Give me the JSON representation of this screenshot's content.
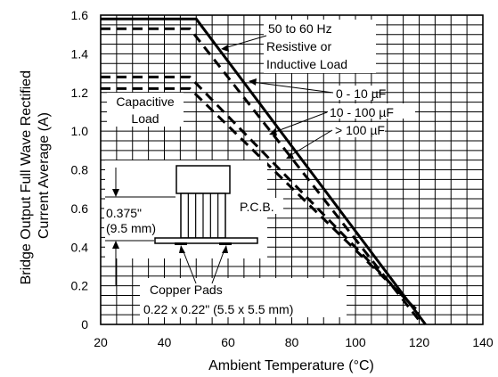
{
  "chart_data": {
    "type": "line",
    "title": "",
    "xlabel": "Ambient Temperature (°C)",
    "ylabel_lines": [
      "Bridge Output Full Wave Rectified",
      "Current Average (A)"
    ],
    "xlim": [
      20,
      140
    ],
    "ylim": [
      0,
      1.6
    ],
    "x_ticks": [
      20,
      40,
      60,
      80,
      100,
      120,
      140
    ],
    "y_ticks": [
      0,
      0.2,
      0.4,
      0.6,
      0.8,
      1.0,
      1.2,
      1.4,
      1.6
    ],
    "x_tick_labels": [
      "20",
      "40",
      "60",
      "80",
      "100",
      "120",
      "140"
    ],
    "y_tick_labels": [
      "0",
      "0.2",
      "0.4",
      "0.6",
      "0.8",
      "1.0",
      "1.2",
      "1.4",
      "1.6"
    ],
    "grid": true,
    "series": [
      {
        "name": "50 to 60 Hz Resistive or Inductive Load",
        "style": "solid",
        "x": [
          20,
          50,
          122
        ],
        "y": [
          1.58,
          1.58,
          0
        ]
      },
      {
        "name": "0 - 10 µF",
        "style": "dashed",
        "x": [
          20,
          48,
          121
        ],
        "y": [
          1.53,
          1.53,
          0
        ]
      },
      {
        "name": "10 - 100 µF",
        "style": "dashed",
        "x": [
          20,
          48,
          120
        ],
        "y": [
          1.28,
          1.28,
          0.06
        ]
      },
      {
        "name": "> 100 µF",
        "style": "dashed",
        "x": [
          20,
          48,
          119
        ],
        "y": [
          1.22,
          1.22,
          0.08
        ]
      }
    ],
    "annotations": {
      "load_title": [
        "50 to 60 Hz",
        "Resistive or",
        "Inductive Load"
      ],
      "cap_0_10": "0 - 10 µF",
      "cap_10_100": "10 - 100 µF",
      "cap_100": "> 100 µF",
      "capacitive": [
        "Capacitive",
        "Load"
      ],
      "pcb": "P.C.B.",
      "height": [
        "0.375\"",
        "(9.5 mm)"
      ],
      "pads": [
        "Copper Pads",
        "0.22 x 0.22\" (5.5 x 5.5 mm)"
      ]
    }
  }
}
